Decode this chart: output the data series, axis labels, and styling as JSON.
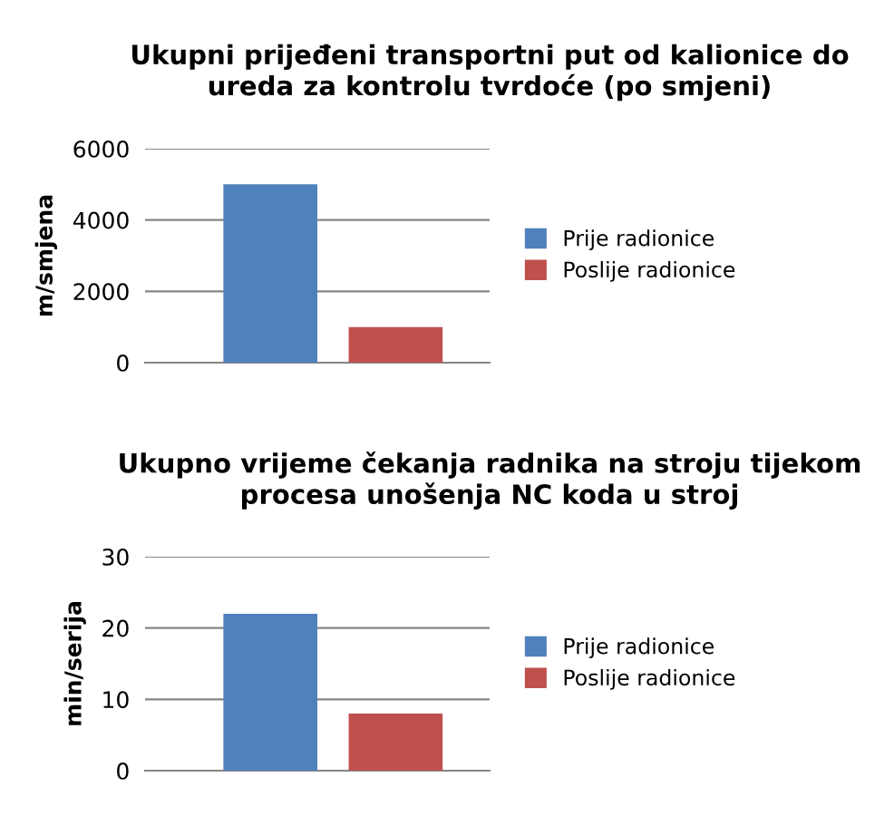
{
  "chart_data": [
    {
      "type": "bar",
      "title": "Ukupni prijeđeni transportni put od kalionice do ureda za kontrolu tvrdoće (po smjeni)",
      "ylabel": "m/smjena",
      "categories": [
        null
      ],
      "series": [
        {
          "name": "Prije radionice",
          "color": "#4f81bd",
          "values": [
            5000
          ]
        },
        {
          "name": "Poslije radionice",
          "color": "#c0504d",
          "values": [
            1000
          ]
        }
      ],
      "ylim": [
        0,
        6000
      ],
      "yticks": [
        0,
        2000,
        4000,
        6000
      ],
      "grid": "y",
      "legend": "right"
    },
    {
      "type": "bar",
      "title": "Ukupno vrijeme čekanja radnika na stroju tijekom procesa unošenja NC koda u stroj",
      "ylabel": "min/serija",
      "categories": [
        null
      ],
      "series": [
        {
          "name": "Prije radionice",
          "color": "#4f81bd",
          "values": [
            22
          ]
        },
        {
          "name": "Poslije radionice",
          "color": "#c0504d",
          "values": [
            8
          ]
        }
      ],
      "ylim": [
        0,
        30
      ],
      "yticks": [
        0,
        10,
        20,
        30
      ],
      "grid": "y",
      "legend": "right"
    }
  ]
}
